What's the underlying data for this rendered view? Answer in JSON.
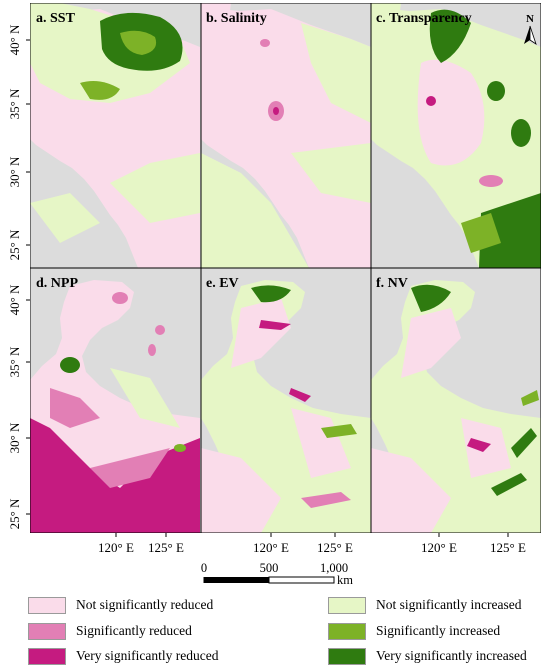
{
  "panels": [
    {
      "label": "a. SST"
    },
    {
      "label": "b. Salinity"
    },
    {
      "label": "c. Transparency"
    },
    {
      "label": "d. NPP"
    },
    {
      "label": "e. EV"
    },
    {
      "label": "f. NV"
    }
  ],
  "lat_ticks": [
    "40° N",
    "35° N",
    "30° N",
    "25° N"
  ],
  "lon_ticks": [
    "120° E",
    "125° E"
  ],
  "north_label": "N",
  "scalebar": {
    "ticks": [
      "0",
      "500",
      "1,000"
    ],
    "unit": "km"
  },
  "legend": [
    {
      "label": "Not significantly reduced",
      "color": "#fadcea"
    },
    {
      "label": "Significantly reduced",
      "color": "#e27fb5"
    },
    {
      "label": "Very significantly reduced",
      "color": "#c51b80"
    },
    {
      "label": "Not significantly increased",
      "color": "#e6f6c6"
    },
    {
      "label": "Significantly increased",
      "color": "#7db227"
    },
    {
      "label": "Very significantly increased",
      "color": "#2f7b10"
    }
  ],
  "colors": {
    "land": "#dcdcdc",
    "frame": "#000000"
  }
}
